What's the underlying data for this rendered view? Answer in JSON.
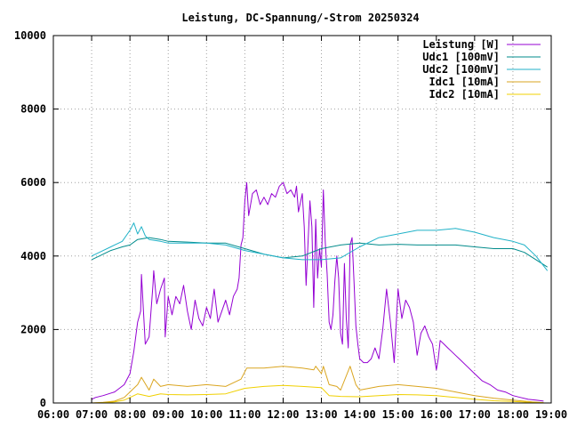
{
  "chart_data": {
    "type": "line",
    "title": "Leistung, DC-Spannung/-Strom 20250324",
    "xlabel": "",
    "ylabel": "",
    "x_unit": "hour of day",
    "xlim": [
      6,
      19
    ],
    "ylim": [
      0,
      10000
    ],
    "x_ticks": [
      {
        "value": 6,
        "label": "06:00"
      },
      {
        "value": 7,
        "label": "07:00"
      },
      {
        "value": 8,
        "label": "08:00"
      },
      {
        "value": 9,
        "label": "09:00"
      },
      {
        "value": 10,
        "label": "10:00"
      },
      {
        "value": 11,
        "label": "11:00"
      },
      {
        "value": 12,
        "label": "12:00"
      },
      {
        "value": 13,
        "label": "13:00"
      },
      {
        "value": 14,
        "label": "14:00"
      },
      {
        "value": 15,
        "label": "15:00"
      },
      {
        "value": 16,
        "label": "16:00"
      },
      {
        "value": 17,
        "label": "17:00"
      },
      {
        "value": 18,
        "label": "18:00"
      },
      {
        "value": 19,
        "label": "19:00"
      }
    ],
    "y_ticks": [
      {
        "value": 0,
        "label": "0"
      },
      {
        "value": 2000,
        "label": "2000"
      },
      {
        "value": 4000,
        "label": "4000"
      },
      {
        "value": 6000,
        "label": "6000"
      },
      {
        "value": 8000,
        "label": "8000"
      },
      {
        "value": 10000,
        "label": "10000"
      }
    ],
    "grid": true,
    "legend_position": "top-right",
    "series": [
      {
        "name": "Leistung [W]",
        "color": "#9400d3",
        "x": [
          7.0,
          7.1,
          7.3,
          7.6,
          7.85,
          8.0,
          8.1,
          8.2,
          8.28,
          8.3,
          8.4,
          8.5,
          8.6,
          8.62,
          8.7,
          8.8,
          8.9,
          8.92,
          9.0,
          9.1,
          9.2,
          9.3,
          9.4,
          9.5,
          9.6,
          9.7,
          9.8,
          9.9,
          10.0,
          10.1,
          10.2,
          10.3,
          10.4,
          10.5,
          10.6,
          10.7,
          10.8,
          10.85,
          10.9,
          10.95,
          11.0,
          11.05,
          11.1,
          11.2,
          11.3,
          11.4,
          11.5,
          11.6,
          11.7,
          11.8,
          11.9,
          12.0,
          12.1,
          12.2,
          12.3,
          12.35,
          12.4,
          12.5,
          12.55,
          12.6,
          12.7,
          12.75,
          12.8,
          12.85,
          12.9,
          12.95,
          13.0,
          13.05,
          13.1,
          13.15,
          13.2,
          13.25,
          13.3,
          13.35,
          13.4,
          13.45,
          13.5,
          13.55,
          13.6,
          13.65,
          13.7,
          13.75,
          13.8,
          13.85,
          13.9,
          13.95,
          14.0,
          14.1,
          14.2,
          14.3,
          14.4,
          14.5,
          14.6,
          14.7,
          14.8,
          14.9,
          15.0,
          15.1,
          15.2,
          15.3,
          15.4,
          15.5,
          15.6,
          15.7,
          15.8,
          15.9,
          16.0,
          16.05,
          16.1,
          16.2,
          16.3,
          16.4,
          16.5,
          16.6,
          16.8,
          17.0,
          17.2,
          17.4,
          17.6,
          17.8,
          18.0,
          18.2,
          18.4,
          18.6,
          18.8
        ],
        "y": [
          100,
          150,
          200,
          300,
          500,
          800,
          1400,
          2200,
          2500,
          3500,
          1600,
          1800,
          3200,
          3600,
          2700,
          3100,
          3400,
          1800,
          2900,
          2400,
          2900,
          2700,
          3200,
          2500,
          2000,
          2800,
          2300,
          2100,
          2600,
          2300,
          3100,
          2200,
          2500,
          2800,
          2400,
          2900,
          3100,
          3400,
          4300,
          4500,
          5500,
          6000,
          5100,
          5700,
          5800,
          5400,
          5600,
          5400,
          5700,
          5600,
          5900,
          6000,
          5700,
          5800,
          5600,
          5900,
          5200,
          5700,
          4800,
          3200,
          5500,
          4800,
          2600,
          5000,
          3400,
          4200,
          3700,
          5800,
          4400,
          3500,
          2200,
          2000,
          2400,
          3300,
          4000,
          3400,
          1900,
          1600,
          3800,
          2300,
          1500,
          4300,
          4500,
          3300,
          2100,
          1600,
          1200,
          1100,
          1100,
          1200,
          1500,
          1200,
          2000,
          3100,
          2200,
          1100,
          3100,
          2300,
          2800,
          2600,
          2200,
          1300,
          1900,
          2100,
          1800,
          1600,
          900,
          1200,
          1700,
          1600,
          1500,
          1400,
          1300,
          1200,
          1000,
          800,
          600,
          500,
          350,
          300,
          200,
          150,
          100,
          80,
          50
        ]
      },
      {
        "name": "Udc1 [100mV]",
        "color": "#008b8b",
        "x": [
          7.0,
          7.2,
          7.5,
          7.8,
          8.0,
          8.2,
          8.5,
          8.8,
          9.0,
          9.5,
          10.0,
          10.5,
          11.0,
          11.5,
          12.0,
          12.5,
          13.0,
          13.5,
          14.0,
          14.5,
          15.0,
          15.5,
          16.0,
          16.5,
          17.0,
          17.5,
          18.0,
          18.3,
          18.6,
          18.9
        ],
        "y": [
          3900,
          4000,
          4150,
          4250,
          4300,
          4450,
          4500,
          4450,
          4400,
          4380,
          4350,
          4350,
          4200,
          4050,
          3950,
          4000,
          4200,
          4300,
          4350,
          4300,
          4320,
          4300,
          4300,
          4300,
          4250,
          4200,
          4200,
          4100,
          3900,
          3700
        ]
      },
      {
        "name": "Udc2 [100mV]",
        "color": "#20b2c8",
        "x": [
          7.0,
          7.2,
          7.5,
          7.8,
          8.0,
          8.1,
          8.2,
          8.3,
          8.4,
          8.5,
          8.8,
          9.0,
          9.5,
          10.0,
          10.5,
          11.0,
          11.5,
          12.0,
          12.5,
          13.0,
          13.5,
          14.0,
          14.5,
          15.0,
          15.5,
          16.0,
          16.5,
          17.0,
          17.5,
          18.0,
          18.3,
          18.6,
          18.9
        ],
        "y": [
          4000,
          4100,
          4250,
          4400,
          4700,
          4900,
          4600,
          4800,
          4550,
          4450,
          4400,
          4350,
          4350,
          4350,
          4300,
          4150,
          4050,
          3950,
          3900,
          3900,
          3950,
          4250,
          4500,
          4600,
          4700,
          4700,
          4750,
          4650,
          4500,
          4400,
          4300,
          4000,
          3600
        ]
      },
      {
        "name": "Idc1 [10mA]",
        "color": "#daa520",
        "x": [
          7.0,
          7.3,
          7.6,
          7.85,
          8.0,
          8.2,
          8.3,
          8.5,
          8.62,
          8.8,
          9.0,
          9.5,
          10.0,
          10.5,
          10.9,
          11.0,
          11.05,
          11.5,
          12.0,
          12.5,
          12.8,
          12.85,
          13.0,
          13.05,
          13.2,
          13.4,
          13.5,
          13.75,
          13.9,
          14.0,
          14.5,
          15.0,
          15.5,
          16.0,
          16.5,
          17.0,
          17.5,
          18.0,
          18.5,
          18.8
        ],
        "y": [
          0,
          20,
          50,
          150,
          300,
          500,
          700,
          350,
          650,
          450,
          500,
          450,
          500,
          450,
          650,
          850,
          950,
          950,
          1000,
          950,
          900,
          1000,
          800,
          1000,
          500,
          450,
          350,
          1000,
          500,
          350,
          450,
          500,
          450,
          400,
          300,
          200,
          130,
          80,
          30,
          10
        ]
      },
      {
        "name": "Idc2 [10mA]",
        "color": "#f0d000",
        "x": [
          7.0,
          7.3,
          7.6,
          7.85,
          8.0,
          8.2,
          8.5,
          8.8,
          9.0,
          9.5,
          10.0,
          10.5,
          11.0,
          11.5,
          12.0,
          12.5,
          13.0,
          13.2,
          13.5,
          14.0,
          14.5,
          15.0,
          15.5,
          16.0,
          16.5,
          17.0,
          17.5,
          18.0,
          18.5,
          18.8
        ],
        "y": [
          0,
          10,
          30,
          80,
          150,
          250,
          180,
          250,
          230,
          220,
          230,
          250,
          400,
          450,
          480,
          450,
          420,
          200,
          180,
          170,
          200,
          230,
          220,
          200,
          150,
          100,
          60,
          40,
          15,
          5
        ]
      }
    ]
  }
}
